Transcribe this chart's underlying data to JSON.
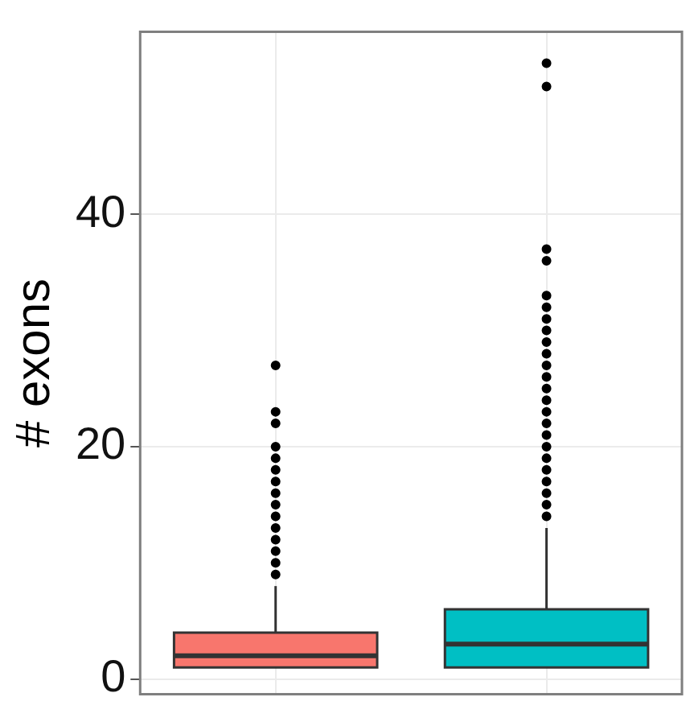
{
  "chart_data": {
    "type": "box",
    "ylabel": "# exons",
    "categories": [
      null,
      null
    ],
    "colors": [
      "#f8766d",
      "#00bfc4"
    ],
    "boxes": [
      {
        "low": 1,
        "q1": 1,
        "median": 2,
        "q3": 4,
        "high": 8,
        "outliers": [
          9,
          10,
          11,
          12,
          13,
          14,
          15,
          16,
          17,
          18,
          19,
          20,
          22,
          23,
          27
        ]
      },
      {
        "low": 1,
        "q1": 1,
        "median": 3,
        "q3": 6,
        "high": 13,
        "outliers": [
          14,
          15,
          16,
          17,
          18,
          19,
          20,
          21,
          22,
          23,
          24,
          25,
          26,
          27,
          28,
          29,
          30,
          31,
          32,
          33,
          36,
          37,
          51,
          53
        ]
      }
    ],
    "ylim": [
      -1.3,
      55.7
    ],
    "yticks": [
      0,
      20,
      40
    ],
    "grid": true,
    "marker": "circle",
    "tick_labels": "y",
    "legend": false
  }
}
